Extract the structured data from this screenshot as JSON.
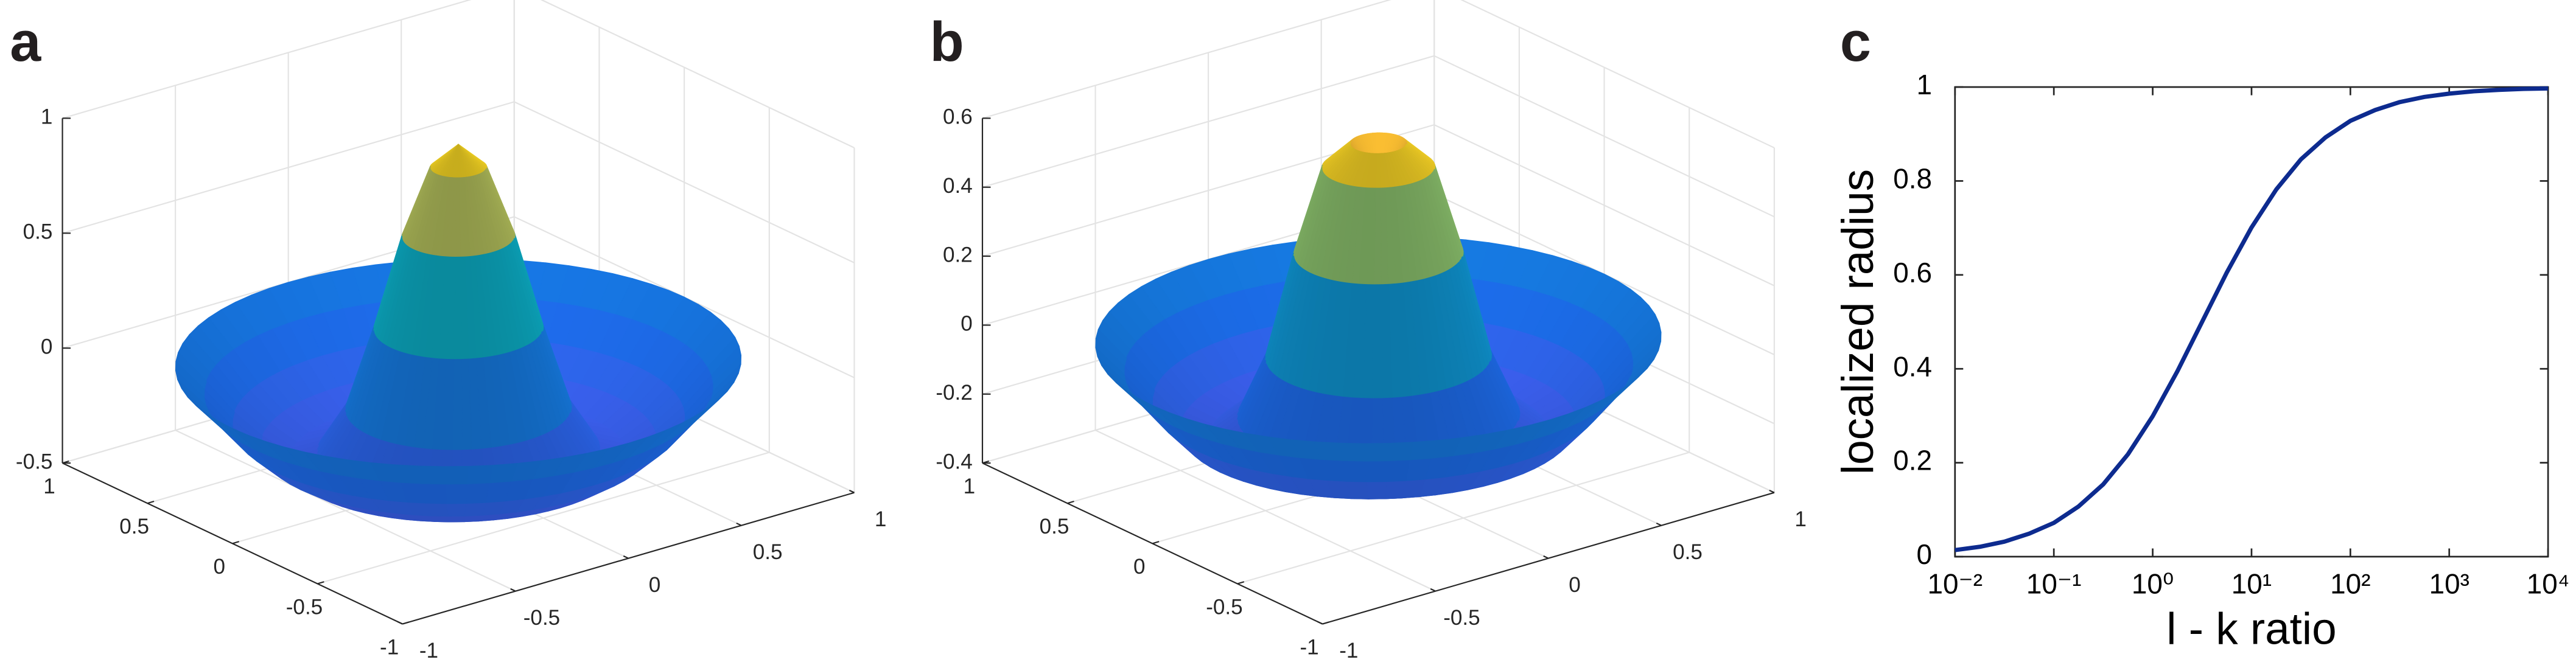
{
  "chart_data": [
    {
      "type": "surface",
      "label": "a",
      "r": [
        0,
        0.1,
        0.2,
        0.3,
        0.4,
        0.5,
        0.6,
        0.7,
        0.8,
        0.9,
        1.0
      ],
      "z": [
        0.95,
        0.85,
        0.55,
        0.15,
        -0.2,
        -0.38,
        -0.42,
        -0.35,
        -0.25,
        -0.12,
        0
      ],
      "xlim": [
        -1,
        1
      ],
      "xticks": [
        -1,
        -0.5,
        0,
        0.5,
        1
      ],
      "ylim": [
        -1,
        1
      ],
      "yticks": [
        -1,
        -0.5,
        0,
        0.5,
        1
      ],
      "zlim": [
        -0.5,
        1
      ],
      "zticks": [
        -0.5,
        0,
        0.5,
        1
      ],
      "grid": true
    },
    {
      "type": "surface",
      "label": "b",
      "r": [
        0,
        0.1,
        0.2,
        0.3,
        0.4,
        0.5,
        0.6,
        0.7,
        0.8,
        0.9,
        1.0
      ],
      "z": [
        0.45,
        0.57,
        0.5,
        0.25,
        -0.05,
        -0.22,
        -0.28,
        -0.25,
        -0.17,
        -0.08,
        0
      ],
      "xlim": [
        -1,
        1
      ],
      "xticks": [
        -1,
        -0.5,
        0,
        0.5,
        1
      ],
      "ylim": [
        -1,
        1
      ],
      "yticks": [
        -1,
        -0.5,
        0,
        0.5,
        1
      ],
      "zlim": [
        -0.4,
        0.6
      ],
      "zticks": [
        -0.4,
        -0.2,
        0,
        0.2,
        0.4,
        0.6
      ],
      "grid": true
    },
    {
      "type": "line",
      "label": "c",
      "xlabel": "l - k ratio",
      "ylabel": "localized radius",
      "x": [
        0.01,
        0.0178,
        0.0316,
        0.0562,
        0.1,
        0.178,
        0.316,
        0.562,
        1,
        1.78,
        3.16,
        5.62,
        10,
        17.8,
        31.6,
        56.2,
        100,
        178,
        316,
        562,
        1000,
        1780,
        3160,
        5620,
        10000
      ],
      "values": [
        0.014,
        0.021,
        0.032,
        0.049,
        0.072,
        0.107,
        0.154,
        0.218,
        0.299,
        0.395,
        0.5,
        0.605,
        0.701,
        0.782,
        0.846,
        0.893,
        0.928,
        0.951,
        0.968,
        0.979,
        0.986,
        0.991,
        0.994,
        0.996,
        0.997
      ],
      "color": "#0d2b8f",
      "log_x": true,
      "xlim": [
        0.01,
        10000
      ],
      "xticks": [
        {
          "value": 0.01,
          "label": "10⁻²"
        },
        {
          "value": 0.1,
          "label": "10⁻¹"
        },
        {
          "value": 1,
          "label": "10⁰"
        },
        {
          "value": 10,
          "label": "10¹"
        },
        {
          "value": 100,
          "label": "10²"
        },
        {
          "value": 1000,
          "label": "10³"
        },
        {
          "value": 10000,
          "label": "10⁴"
        }
      ],
      "ylim": [
        0,
        1
      ],
      "yticks": [
        0,
        0.2,
        0.4,
        0.6,
        0.8,
        1
      ]
    }
  ]
}
